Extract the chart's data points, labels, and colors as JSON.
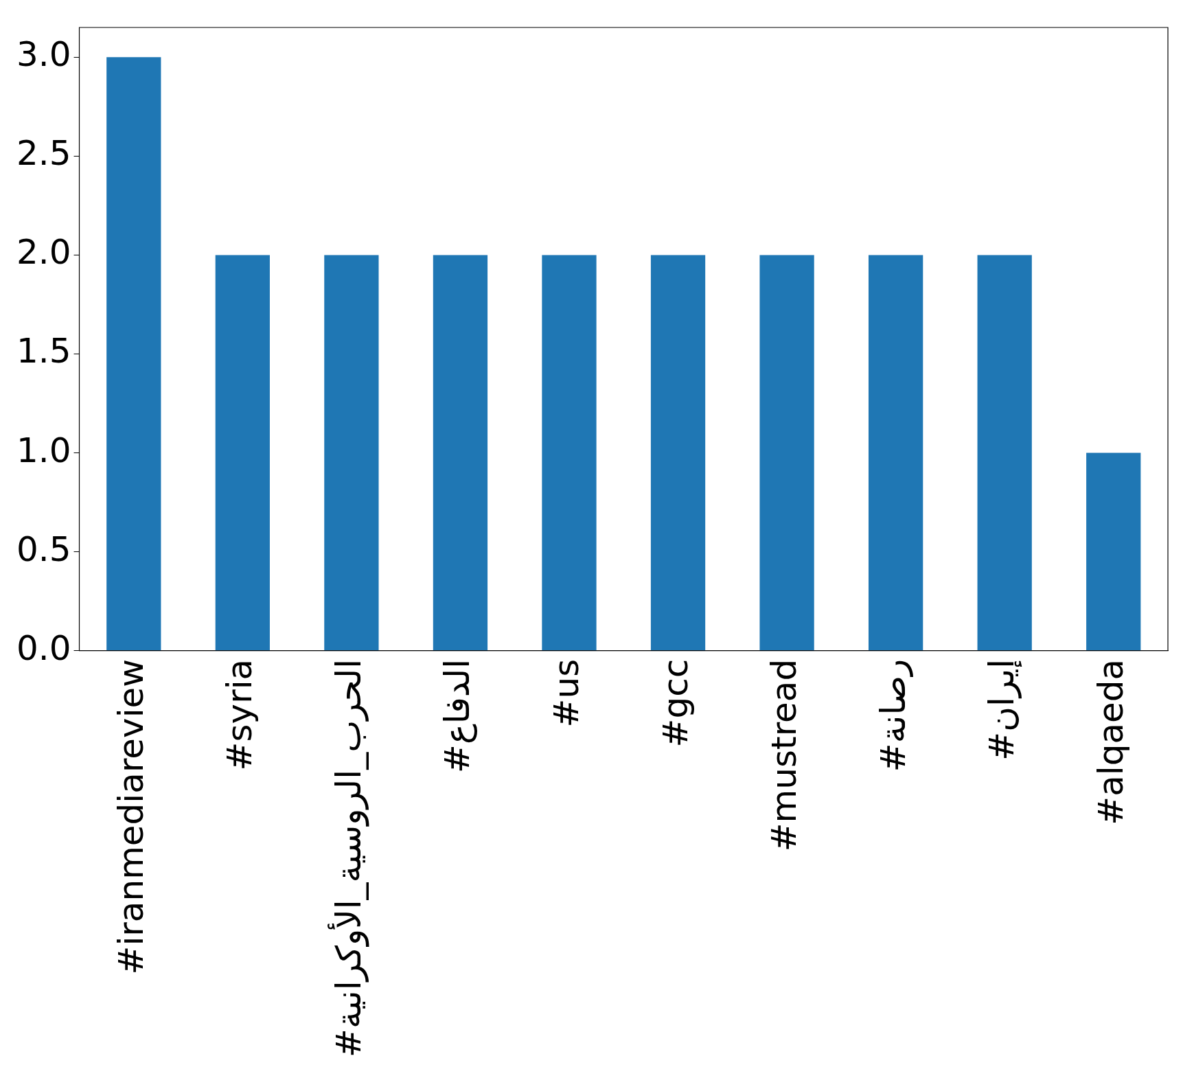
{
  "chart_data": {
    "type": "bar",
    "categories": [
      "#iranmediareview",
      "#syria",
      "#الحرب_الروسية_الأوكرانية",
      "#الدفاع",
      "#us",
      "#gcc",
      "#mustread",
      "#رصانة",
      "#إيران",
      "#alqaeda"
    ],
    "values": [
      3,
      2,
      2,
      2,
      2,
      2,
      2,
      2,
      2,
      1
    ],
    "color": "#1f77b4",
    "ylim": [
      0,
      3.15
    ],
    "yticks": [
      {
        "value": 0,
        "label": "0.0"
      },
      {
        "value": 0.5,
        "label": "0.5"
      },
      {
        "value": 1,
        "label": "1.0"
      },
      {
        "value": 1.5,
        "label": "1.5"
      },
      {
        "value": 2,
        "label": "2.0"
      },
      {
        "value": 2.5,
        "label": "2.5"
      },
      {
        "value": 3,
        "label": "3.0"
      }
    ],
    "grid": false,
    "legend": false
  }
}
